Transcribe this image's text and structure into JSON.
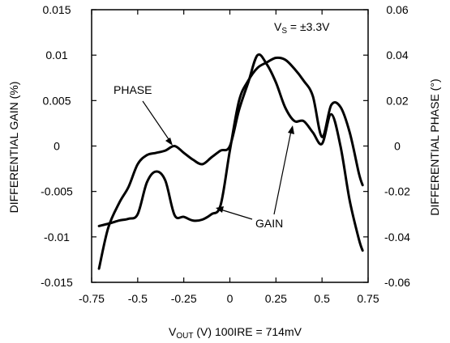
{
  "chart_data": {
    "type": "line",
    "title": "",
    "xlabel_main": "V",
    "xlabel_sub": "OUT",
    "xlabel_rest": " (V) 100IRE = 714mV",
    "ylabel_left": "DIFFERENTIAL GAIN (%)",
    "ylabel_right": "DIFFERENTIAL PHASE (°)",
    "xlim": [
      -0.75,
      0.75
    ],
    "ylim_left": [
      -0.015,
      0.015
    ],
    "ylim_right": [
      -0.06,
      0.06
    ],
    "x_ticks": [
      "-0.75",
      "-0.5",
      "-0.25",
      "0",
      "0.25",
      "0.5",
      "0.75"
    ],
    "x_tick_values": [
      -0.75,
      -0.5,
      -0.25,
      0,
      0.25,
      0.5,
      0.75
    ],
    "y_left_ticks": [
      "0.015",
      "0.01",
      "0.005",
      "0",
      "-0.005",
      "-0.01",
      "-0.015"
    ],
    "y_left_tick_values": [
      0.015,
      0.01,
      0.005,
      0,
      -0.005,
      -0.01,
      -0.015
    ],
    "y_right_ticks": [
      "0.06",
      "0.04",
      "0.02",
      "0",
      "-0.02",
      "-0.04",
      "-0.06"
    ],
    "y_right_tick_values": [
      0.06,
      0.04,
      0.02,
      0,
      -0.02,
      -0.04,
      -0.06
    ],
    "grid": false,
    "annotations": {
      "supply_main": "V",
      "supply_sub": "S",
      "supply_rest": " = ±3.3V",
      "phase_label": "PHASE",
      "gain_label": "GAIN"
    },
    "series": [
      {
        "name": "PHASE",
        "axis": "right",
        "x": [
          -0.71,
          -0.66,
          -0.6,
          -0.55,
          -0.5,
          -0.45,
          -0.4,
          -0.35,
          -0.3,
          -0.25,
          -0.2,
          -0.15,
          -0.1,
          -0.05,
          0.0,
          0.05,
          0.1,
          0.15,
          0.2,
          0.25,
          0.3,
          0.35,
          0.4,
          0.45,
          0.5,
          0.55,
          0.6,
          0.65,
          0.7,
          0.72
        ],
        "values": [
          -0.054,
          -0.036,
          -0.025,
          -0.018,
          -0.008,
          -0.004,
          -0.003,
          -0.002,
          0.0,
          -0.003,
          -0.006,
          -0.008,
          -0.005,
          -0.002,
          0.0,
          0.016,
          0.028,
          0.04,
          0.036,
          0.028,
          0.017,
          0.011,
          0.011,
          0.006,
          0.001,
          0.014,
          0.0,
          -0.024,
          -0.041,
          -0.046
        ]
      },
      {
        "name": "GAIN",
        "axis": "left",
        "x": [
          -0.71,
          -0.65,
          -0.6,
          -0.55,
          -0.5,
          -0.45,
          -0.4,
          -0.35,
          -0.3,
          -0.25,
          -0.2,
          -0.15,
          -0.1,
          -0.05,
          0.0,
          0.05,
          0.1,
          0.15,
          0.2,
          0.25,
          0.3,
          0.35,
          0.4,
          0.45,
          0.5,
          0.55,
          0.6,
          0.65,
          0.7,
          0.72
        ],
        "values": [
          -0.0088,
          -0.0085,
          -0.0082,
          -0.008,
          -0.0075,
          -0.004,
          -0.0028,
          -0.0038,
          -0.0076,
          -0.0078,
          -0.0082,
          -0.0081,
          -0.0075,
          -0.0065,
          -0.0005,
          0.005,
          0.0072,
          0.0086,
          0.0092,
          0.0097,
          0.0095,
          0.0085,
          0.0072,
          0.0055,
          0.001,
          0.0045,
          0.0043,
          0.0015,
          -0.003,
          -0.0043
        ]
      }
    ]
  }
}
